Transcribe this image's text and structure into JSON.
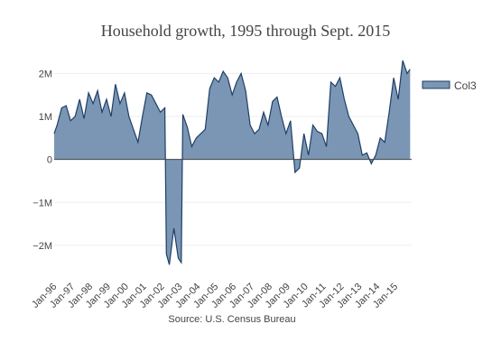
{
  "chart_data": {
    "type": "area",
    "title": "Household growth, 1995 through Sept. 2015",
    "xlabel": "Source: U.S. Census Bureau",
    "ylabel": "",
    "ylim": [
      -2800000,
      2450000
    ],
    "xlim": [
      "1995-11",
      "2015-10"
    ],
    "y_ticks": [
      2000000,
      1000000,
      0,
      -1000000,
      -2000000
    ],
    "y_tick_labels": [
      "2M",
      "1M",
      "0",
      "−1M",
      "−2M"
    ],
    "x_tick_labels": [
      "Jan-96",
      "Jan-97",
      "Jan-98",
      "Jan-99",
      "Jan-00",
      "Jan-01",
      "Jan-02",
      "Jan-03",
      "Jan-04",
      "Jan-05",
      "Jan-06",
      "Jan-07",
      "Jan-08",
      "Jan-09",
      "Jan-10",
      "Jan-11",
      "Jan-12",
      "Jan-13",
      "Jan-14",
      "Jan-15"
    ],
    "grid": true,
    "legend_position": "top-right",
    "colors": {
      "fill": "#7a96b4",
      "line": "#1f3f66",
      "zero_line": "#444444",
      "grid": "#eeeeee"
    },
    "series": [
      {
        "name": "Col3",
        "x": [
          "1995-11",
          "1996-01",
          "1996-04",
          "1996-07",
          "1996-10",
          "1997-01",
          "1997-04",
          "1997-07",
          "1997-10",
          "1998-01",
          "1998-04",
          "1998-07",
          "1998-10",
          "1999-01",
          "1999-04",
          "1999-07",
          "1999-10",
          "2000-01",
          "2000-04",
          "2000-07",
          "2000-10",
          "2001-01",
          "2001-04",
          "2001-07",
          "2001-10",
          "2002-01",
          "2002-02",
          "2002-04",
          "2002-07",
          "2002-10",
          "2002-12",
          "2003-01",
          "2003-04",
          "2003-07",
          "2003-10",
          "2004-01",
          "2004-04",
          "2004-07",
          "2004-10",
          "2005-01",
          "2005-04",
          "2005-07",
          "2005-10",
          "2006-01",
          "2006-04",
          "2006-07",
          "2006-10",
          "2007-01",
          "2007-04",
          "2007-07",
          "2007-10",
          "2008-01",
          "2008-04",
          "2008-07",
          "2008-10",
          "2009-01",
          "2009-04",
          "2009-07",
          "2009-10",
          "2010-01",
          "2010-04",
          "2010-07",
          "2010-10",
          "2011-01",
          "2011-04",
          "2011-07",
          "2011-10",
          "2012-01",
          "2012-04",
          "2012-07",
          "2012-10",
          "2013-01",
          "2013-04",
          "2013-07",
          "2013-10",
          "2014-01",
          "2014-04",
          "2014-07",
          "2014-10",
          "2015-01",
          "2015-04",
          "2015-07",
          "2015-09"
        ],
        "y": [
          600000,
          800000,
          1200000,
          1250000,
          900000,
          1000000,
          1400000,
          950000,
          1550000,
          1300000,
          1600000,
          1100000,
          1400000,
          1000000,
          1750000,
          1300000,
          1550000,
          1000000,
          700000,
          400000,
          1000000,
          1550000,
          1500000,
          1300000,
          1100000,
          1200000,
          -2200000,
          -2450000,
          -1600000,
          -2300000,
          -2400000,
          1050000,
          750000,
          300000,
          500000,
          600000,
          700000,
          1650000,
          1900000,
          1800000,
          2050000,
          1900000,
          1500000,
          1800000,
          2000000,
          1600000,
          800000,
          600000,
          700000,
          1100000,
          800000,
          1350000,
          1450000,
          1000000,
          600000,
          900000,
          -300000,
          -200000,
          600000,
          100000,
          800000,
          650000,
          600000,
          300000,
          1800000,
          1700000,
          1900000,
          1400000,
          1000000,
          800000,
          600000,
          100000,
          150000,
          -100000,
          100000,
          500000,
          400000,
          1100000,
          1900000,
          1400000,
          2300000,
          2000000,
          2100000
        ]
      }
    ]
  }
}
